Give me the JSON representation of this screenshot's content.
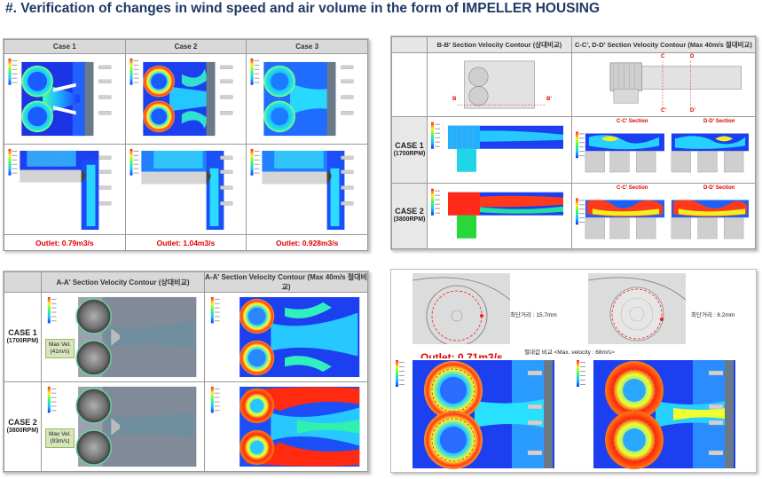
{
  "title": "#. Verification of changes in wind speed and air volume in the form of IMPELLER HOUSING",
  "panel1": {
    "headers": [
      "Case 1",
      "Case 2",
      "Case 3"
    ],
    "outlets": [
      "Outlet: 0.79m3/s",
      "Outlet: 1.04m3/s",
      "Outlet: 0.928m3/s"
    ]
  },
  "panel2": {
    "headers": [
      "B-B' Section Velocity Contour (상대비교)",
      "C-C', D-D' Section Velocity Contour (Max 40m/s 절대비교)"
    ],
    "rows": [
      {
        "case": "CASE 1",
        "rpm": "(1700RPM)"
      },
      {
        "case": "CASE 2",
        "rpm": "(3800RPM)"
      }
    ],
    "section_labels": [
      "C-C' Section",
      "D-D' Section"
    ],
    "markers": {
      "b": "B",
      "b2": "B'",
      "c": "C",
      "c2": "C'",
      "d": "D",
      "d2": "D'"
    }
  },
  "panel3": {
    "headers": [
      "A-A' Section Velocity Contour (상대비교)",
      "A-A' Section Velocity Contour (Max 40m/s 절대비교)"
    ],
    "rows": [
      {
        "case": "CASE 1",
        "rpm": "(1700RPM)",
        "max_label": "Max Vel.",
        "max_value": "(41m/s)"
      },
      {
        "case": "CASE 2",
        "rpm": "(3800RPM)",
        "max_label": "Max Vel.",
        "max_value": "(93m/s)"
      }
    ]
  },
  "panel4": {
    "dist1": "최단거리 : 15.7mm",
    "dist2": "최단거리 : 6.2mm",
    "outlet": "Outlet: 0.71m3/s",
    "compare": "절대값 비교 <Max. velocity : 68m/s>"
  },
  "colors": {
    "accent_red": "#e00000",
    "title_blue": "#1f3a66"
  }
}
